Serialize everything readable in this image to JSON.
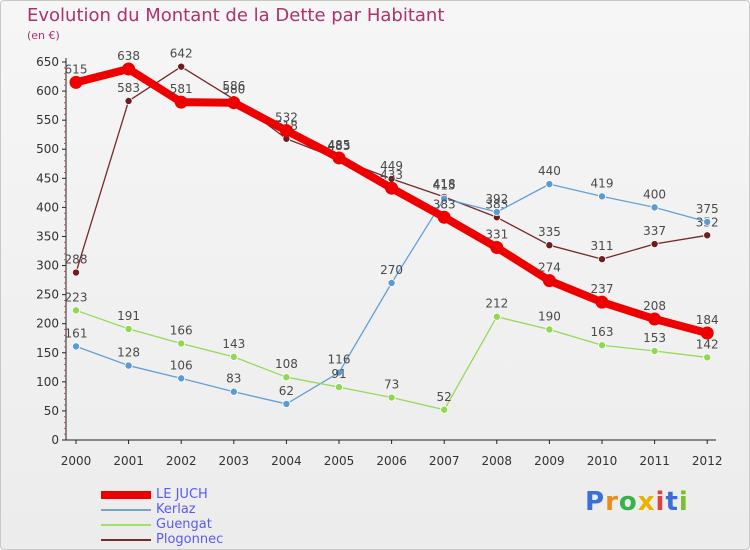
{
  "chart_data": {
    "type": "line",
    "title": "Evolution du Montant de la Dette par Habitant",
    "subtitle": "(en €)",
    "xlabel": "",
    "ylabel": "",
    "categories": [
      "2000",
      "2001",
      "2002",
      "2003",
      "2004",
      "2005",
      "2006",
      "2007",
      "2008",
      "2009",
      "2010",
      "2011",
      "2012"
    ],
    "yticks": [
      "0",
      "50",
      "100",
      "150",
      "200",
      "250",
      "300",
      "350",
      "400",
      "450",
      "500",
      "550",
      "600",
      "650"
    ],
    "ylim": [
      0,
      650
    ],
    "grid": false,
    "legend_position": "bottom-left",
    "series": [
      {
        "name": "Plogonnec",
        "color": "#6e1e1e",
        "values": [
          288,
          583,
          642,
          586,
          518,
          483,
          449,
          418,
          383,
          335,
          311,
          337,
          352
        ]
      },
      {
        "name": "Kerlaz",
        "color": "#5b9bd5",
        "values": [
          161,
          128,
          106,
          83,
          62,
          116,
          270,
          415,
          392,
          440,
          419,
          400,
          375
        ]
      },
      {
        "name": "Guengat",
        "color": "#8fd84f",
        "values": [
          223,
          191,
          166,
          143,
          108,
          91,
          73,
          52,
          212,
          190,
          163,
          153,
          142
        ]
      },
      {
        "name": "LE JUCH",
        "color": "#ee0000",
        "values": [
          615,
          638,
          581,
          580,
          532,
          485,
          433,
          383,
          331,
          274,
          237,
          208,
          184
        ]
      }
    ]
  },
  "legend": [
    {
      "name": "LE JUCH",
      "color": "#ee0000",
      "thickness": 8
    },
    {
      "name": "Kerlaz",
      "color": "#7aa3c8",
      "thickness": 2
    },
    {
      "name": "Guengat",
      "color": "#9de06b",
      "thickness": 2
    },
    {
      "name": "Plogonnec",
      "color": "#7a2a2a",
      "thickness": 2
    }
  ],
  "logo": {
    "text": "Proxiti",
    "letters": [
      "P",
      "r",
      "o",
      "x",
      "i",
      "t",
      "i"
    ],
    "colors": [
      "#3a6fd8",
      "#f08a1c",
      "#37b24d",
      "#e8b400",
      "#d9453a",
      "#3a6fd8",
      "#7bbf2a"
    ]
  }
}
